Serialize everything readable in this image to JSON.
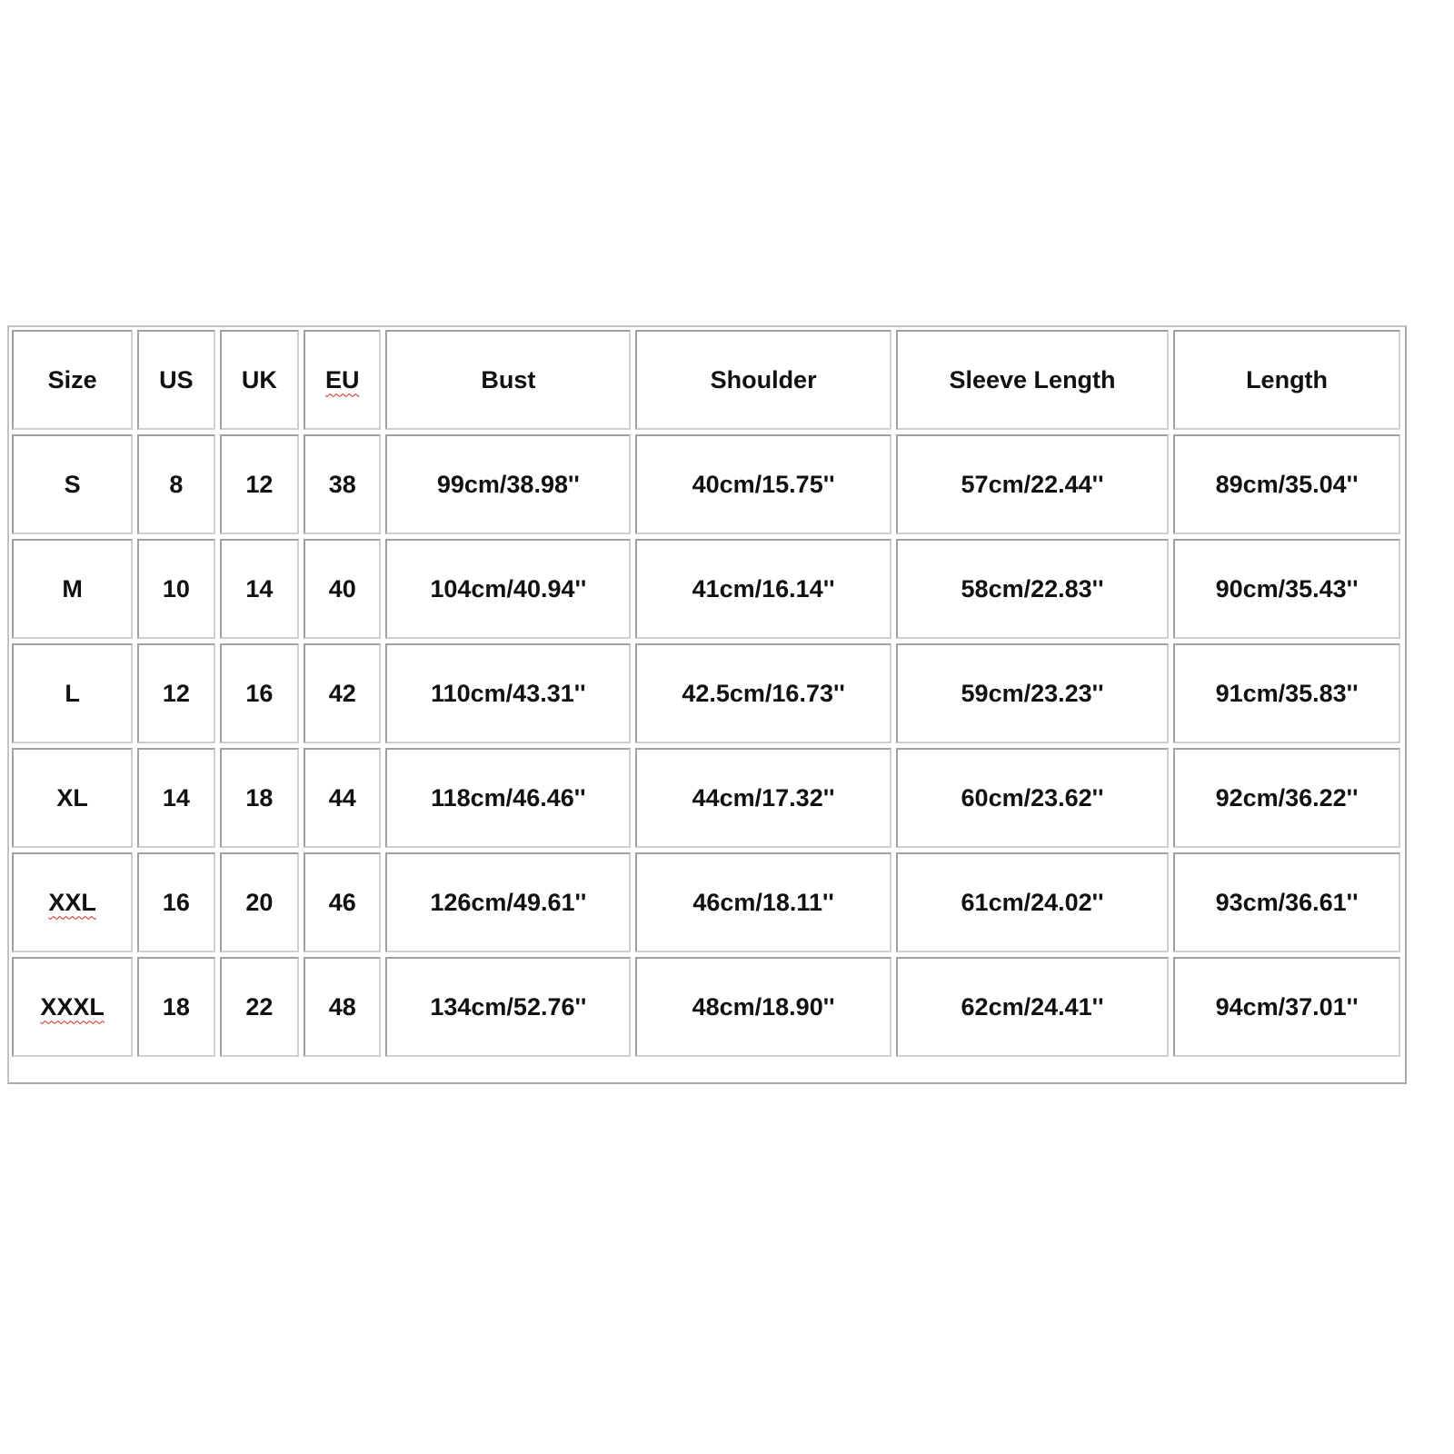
{
  "size_chart": {
    "headers": [
      "Size",
      "US",
      "UK",
      "EU",
      "Bust",
      "Shoulder",
      "Sleeve Length",
      "Length"
    ],
    "rows": [
      [
        "S",
        "8",
        "12",
        "38",
        "99cm/38.98''",
        "40cm/15.75''",
        "57cm/22.44''",
        "89cm/35.04''"
      ],
      [
        "M",
        "10",
        "14",
        "40",
        "104cm/40.94''",
        "41cm/16.14''",
        "58cm/22.83''",
        "90cm/35.43''"
      ],
      [
        "L",
        "12",
        "16",
        "42",
        "110cm/43.31''",
        "42.5cm/16.73''",
        "59cm/23.23''",
        "91cm/35.83''"
      ],
      [
        "XL",
        "14",
        "18",
        "44",
        "118cm/46.46''",
        "44cm/17.32''",
        "60cm/23.62''",
        "92cm/36.22''"
      ],
      [
        "XXL",
        "16",
        "20",
        "46",
        "126cm/49.61''",
        "46cm/18.11''",
        "61cm/24.02''",
        "93cm/36.61''"
      ],
      [
        "XXXL",
        "18",
        "22",
        "48",
        "134cm/52.76''",
        "48cm/18.90''",
        "62cm/24.41''",
        "94cm/37.01''"
      ]
    ],
    "spellcheck_marked": [
      "EU",
      "XXL",
      "XXXL"
    ],
    "colors": {
      "text": "#111111",
      "cell_border": "#a0a0a0",
      "spellcheck": "#d02020"
    }
  }
}
